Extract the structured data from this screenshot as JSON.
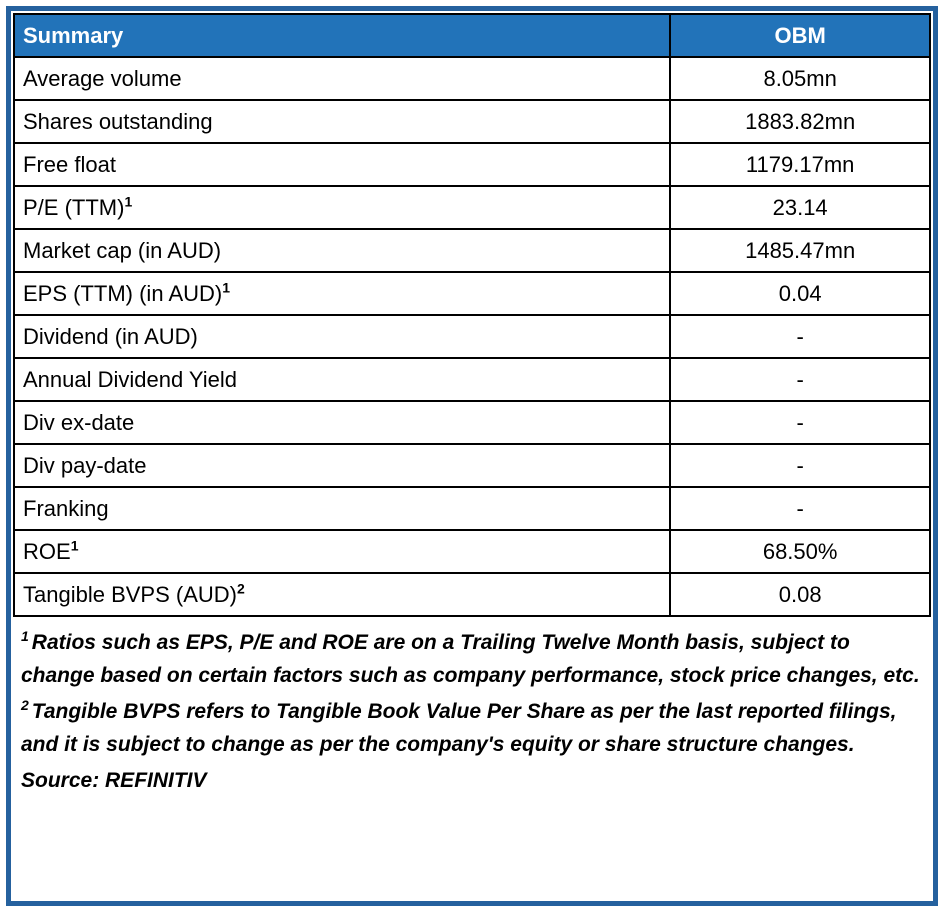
{
  "table": {
    "header": {
      "label": "Summary",
      "value_header": "OBM"
    },
    "rows": [
      {
        "label": "Average volume",
        "sup": "",
        "value": "8.05mn"
      },
      {
        "label": "Shares outstanding",
        "sup": "",
        "value": "1883.82mn"
      },
      {
        "label": "Free float",
        "sup": "",
        "value": "1179.17mn"
      },
      {
        "label": "P/E (TTM)",
        "sup": "1",
        "value": "23.14"
      },
      {
        "label": "Market cap (in AUD)",
        "sup": "",
        "value": "1485.47mn"
      },
      {
        "label": "EPS (TTM) (in AUD)",
        "sup": "1",
        "value": "0.04"
      },
      {
        "label": "Dividend (in AUD)",
        "sup": "",
        "value": "-"
      },
      {
        "label": "Annual Dividend Yield",
        "sup": "",
        "value": "-"
      },
      {
        "label": "Div ex-date",
        "sup": "",
        "value": "-"
      },
      {
        "label": "Div pay-date",
        "sup": "",
        "value": "-"
      },
      {
        "label": "Franking",
        "sup": "",
        "value": "-"
      },
      {
        "label": "ROE",
        "sup": "1",
        "value": "68.50%"
      },
      {
        "label": "Tangible BVPS (AUD)",
        "sup": "2",
        "value": "0.08"
      }
    ]
  },
  "footnotes": [
    {
      "marker": "1",
      "text": "Ratios such as EPS, P/E and ROE are on a Trailing Twelve Month basis, subject to change based on certain factors such as company performance, stock price changes, etc."
    },
    {
      "marker": "2",
      "text": "Tangible BVPS refers to Tangible Book Value Per Share as per the last reported filings, and it is subject to change as per the company's equity or share structure changes."
    }
  ],
  "source": "Source: REFINITIV",
  "colors": {
    "header_bg": "#2273B9",
    "header_text": "#FFFFFF",
    "frame_border": "#25619E",
    "grid_line": "#000000"
  }
}
